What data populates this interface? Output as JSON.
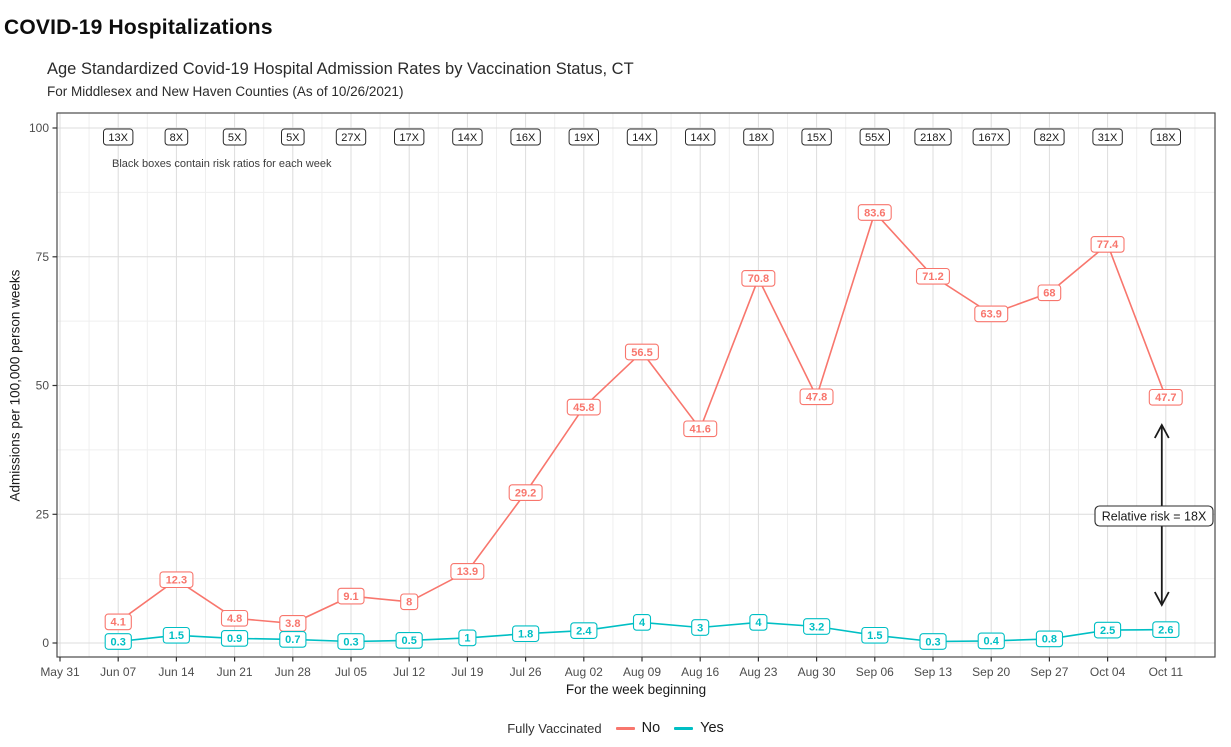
{
  "page": {
    "title": "COVID-19 Hospitalizations"
  },
  "chart_data": {
    "type": "line",
    "title": "Age Standardized Covid-19 Hospital Admission Rates by Vaccination Status, CT",
    "subtitle": "For Middlesex and New Haven Counties (As of 10/26/2021)",
    "xlabel": "For the week beginning",
    "ylabel": "Admissions per 100,000 person weeks",
    "ylim": [
      0,
      100
    ],
    "yticks": [
      0,
      25,
      50,
      75,
      100
    ],
    "grid": "major and minor, light gray on white, black panel border",
    "note": "Black boxes contain risk ratios for each week",
    "annotation": {
      "label": "Relative risk = 18X",
      "at_category": "Oct 11"
    },
    "legend": {
      "title": "Fully Vaccinated",
      "position": "bottom"
    },
    "categories": [
      "May 31",
      "Jun 07",
      "Jun 14",
      "Jun 21",
      "Jun 28",
      "Jul 05",
      "Jul 12",
      "Jul 19",
      "Jul 26",
      "Aug 02",
      "Aug 09",
      "Aug 16",
      "Aug 23",
      "Aug 30",
      "Sep 06",
      "Sep 13",
      "Sep 20",
      "Sep 27",
      "Oct 04",
      "Oct 11"
    ],
    "series": [
      {
        "name": "No",
        "color": "#F8766D",
        "values": [
          null,
          4.1,
          12.3,
          4.8,
          3.8,
          9.1,
          8,
          13.9,
          29.2,
          45.8,
          56.5,
          41.6,
          70.8,
          47.8,
          83.6,
          71.2,
          63.9,
          68,
          77.4,
          47.7
        ]
      },
      {
        "name": "Yes",
        "color": "#00BFC4",
        "values": [
          null,
          0.3,
          1.5,
          0.9,
          0.7,
          0.3,
          0.5,
          1,
          1.8,
          2.4,
          4,
          3,
          4,
          3.2,
          1.5,
          0.3,
          0.4,
          0.8,
          2.5,
          2.6
        ]
      }
    ],
    "risk_ratios": [
      null,
      "13X",
      "8X",
      "5X",
      "5X",
      "27X",
      "17X",
      "14X",
      "16X",
      "19X",
      "14X",
      "14X",
      "18X",
      "15X",
      "55X",
      "218X",
      "167X",
      "82X",
      "31X",
      "18X"
    ]
  }
}
